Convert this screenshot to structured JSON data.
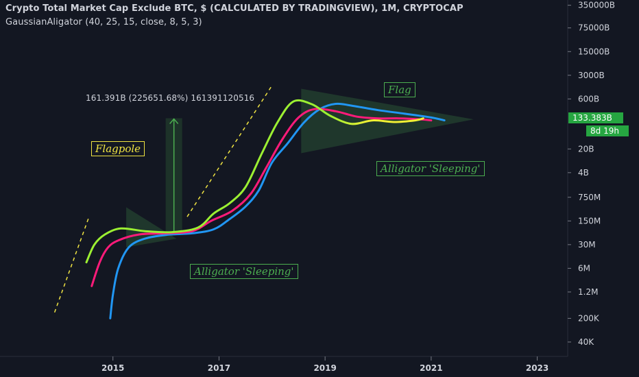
{
  "header": {
    "title": "Crypto Total Market Cap Exclude BTC, $ (CALCULATED BY TRADINGVIEW), 1M, CRYPTOCAP",
    "indicator": "GaussianAligator (40, 25, 15, close, 8, 5, 3)"
  },
  "measure": {
    "text": "161.391B (225651.68%) 161391120516",
    "from_date": 2016.15,
    "from_value": 70000000,
    "to_value": 161391120516
  },
  "annotations": {
    "flagpole": "Flagpole",
    "flag": "Flag",
    "sleeping_upper": "Alligator 'Sleeping'",
    "sleeping_lower": "Alligator 'Sleeping'"
  },
  "price_tag": {
    "value": "133.383B",
    "countdown": "8d 19h",
    "color": "#26a641"
  },
  "colors": {
    "background": "#131722",
    "jaw": "#2196f3",
    "teeth": "#ff1b7a",
    "lips": "#9cf032",
    "lips_late": "#f2ef34",
    "trend": "#f0e442",
    "annotation_green": "#4caf50",
    "annotation_yellow": "#f0e442",
    "axis_text": "#d1d4dc"
  },
  "chart_data": {
    "type": "line",
    "x_axis": {
      "ticks": [
        2015,
        2017,
        2019,
        2021,
        2023
      ],
      "range": [
        2013.0,
        2023.6
      ]
    },
    "y_axis": {
      "scale": "log",
      "ticks": [
        {
          "label": "350000B",
          "value": 350000000000000
        },
        {
          "label": "75000B",
          "value": 75000000000000
        },
        {
          "label": "15000B",
          "value": 15000000000000
        },
        {
          "label": "3000B",
          "value": 3000000000000
        },
        {
          "label": "600B",
          "value": 600000000000
        },
        {
          "label": "20B",
          "value": 20000000000
        },
        {
          "label": "4B",
          "value": 4000000000
        },
        {
          "label": "750M",
          "value": 750000000
        },
        {
          "label": "150M",
          "value": 150000000
        },
        {
          "label": "30M",
          "value": 30000000
        },
        {
          "label": "6M",
          "value": 6000000
        },
        {
          "label": "1.2M",
          "value": 1200000
        },
        {
          "label": "200K",
          "value": 200000
        },
        {
          "label": "40K",
          "value": 40000
        }
      ],
      "range": [
        15000,
        500000000000000
      ]
    },
    "series": [
      {
        "key": "jaw",
        "points": [
          [
            2014.95,
            200000
          ],
          [
            2015.0,
            1000000
          ],
          [
            2015.1,
            6000000
          ],
          [
            2015.3,
            25000000
          ],
          [
            2015.6,
            45000000
          ],
          [
            2016.0,
            58000000
          ],
          [
            2016.5,
            65000000
          ],
          [
            2016.9,
            85000000
          ],
          [
            2017.2,
            170000000
          ],
          [
            2017.5,
            400000000
          ],
          [
            2017.75,
            1200000000
          ],
          [
            2018.0,
            8000000000
          ],
          [
            2018.3,
            30000000000
          ],
          [
            2018.6,
            120000000000
          ],
          [
            2018.9,
            300000000000
          ],
          [
            2019.2,
            430000000000
          ],
          [
            2019.5,
            380000000000
          ],
          [
            2020.0,
            280000000000
          ],
          [
            2020.5,
            220000000000
          ],
          [
            2021.0,
            170000000000
          ],
          [
            2021.25,
            140000000000
          ]
        ]
      },
      {
        "key": "teeth",
        "points": [
          [
            2014.6,
            1800000
          ],
          [
            2014.75,
            9000000
          ],
          [
            2014.9,
            24000000
          ],
          [
            2015.1,
            40000000
          ],
          [
            2015.5,
            60000000
          ],
          [
            2016.0,
            65000000
          ],
          [
            2016.5,
            75000000
          ],
          [
            2016.85,
            150000000
          ],
          [
            2017.25,
            300000000
          ],
          [
            2017.6,
            950000000
          ],
          [
            2017.9,
            6000000000
          ],
          [
            2018.2,
            40000000000
          ],
          [
            2018.5,
            170000000000
          ],
          [
            2018.8,
            300000000000
          ],
          [
            2019.2,
            260000000000
          ],
          [
            2019.6,
            180000000000
          ],
          [
            2020.0,
            160000000000
          ],
          [
            2020.4,
            160000000000
          ],
          [
            2020.8,
            150000000000
          ],
          [
            2021.0,
            140000000000
          ]
        ]
      },
      {
        "key": "lips",
        "points": [
          [
            2014.5,
            9000000
          ],
          [
            2014.65,
            30000000
          ],
          [
            2014.85,
            60000000
          ],
          [
            2015.15,
            90000000
          ],
          [
            2015.6,
            75000000
          ],
          [
            2016.1,
            70000000
          ],
          [
            2016.6,
            95000000
          ],
          [
            2016.9,
            250000000
          ],
          [
            2017.2,
            500000000
          ],
          [
            2017.5,
            1500000000
          ],
          [
            2017.8,
            14000000000
          ],
          [
            2018.1,
            120000000000
          ],
          [
            2018.4,
            500000000000
          ],
          [
            2018.75,
            420000000000
          ],
          [
            2019.1,
            190000000000
          ],
          [
            2019.5,
            110000000000
          ],
          [
            2019.9,
            140000000000
          ],
          [
            2020.3,
            125000000000
          ],
          [
            2020.7,
            140000000000
          ],
          [
            2020.85,
            160000000000
          ]
        ]
      }
    ],
    "trend_lines": [
      {
        "from": [
          2013.9,
          300000
        ],
        "to": [
          2014.55,
          200000000
        ]
      },
      {
        "from": [
          2016.4,
          200000000
        ],
        "to": [
          2018.0,
          1500000000000
        ]
      }
    ],
    "triangles": [
      {
        "points": [
          [
            2015.25,
            380000000
          ],
          [
            2015.25,
            25000000
          ],
          [
            2016.2,
            45000000
          ]
        ]
      },
      {
        "points": [
          [
            2018.55,
            1200000000000
          ],
          [
            2018.55,
            15000000000
          ],
          [
            2021.8,
            150000000000
          ]
        ]
      }
    ]
  }
}
